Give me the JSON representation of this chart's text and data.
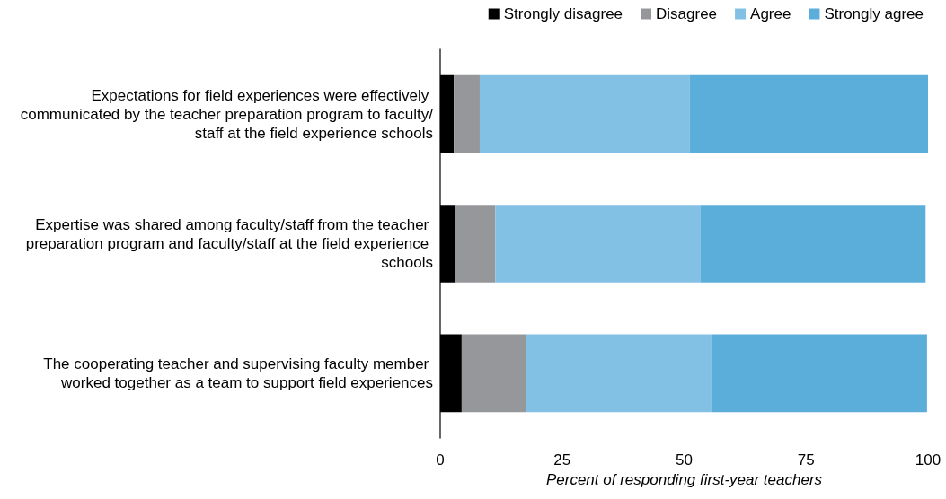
{
  "chart_data": {
    "type": "bar",
    "orientation": "horizontal",
    "stacked": true,
    "categories": [
      "Expectations for field experiences were effectively communicated by the teacher preparation program to faculty/staff at the field experience schools",
      "Expertise was shared among faculty/staff from the teacher preparation program and faculty/staff at the field experience schools",
      "The cooperating teacher and supervising faculty member worked together as a team to support field experiences"
    ],
    "series": [
      {
        "name": "Strongly disagree",
        "color": "#000000",
        "values": [
          2.8,
          3.0,
          4.4
        ]
      },
      {
        "name": "Disagree",
        "color": "#96979b",
        "values": [
          5.3,
          8.3,
          13.2
        ]
      },
      {
        "name": "Agree",
        "color": "#82c0e4",
        "values": [
          43.0,
          42.0,
          38.0
        ]
      },
      {
        "name": "Strongly agree",
        "color": "#5badda",
        "values": [
          48.9,
          46.2,
          44.2
        ]
      }
    ],
    "xlabel": "Percent of responding first-year teachers",
    "xlim": [
      0,
      100
    ],
    "xticks": [
      0,
      25,
      50,
      75,
      100
    ],
    "grid": false,
    "legend": "top right"
  }
}
